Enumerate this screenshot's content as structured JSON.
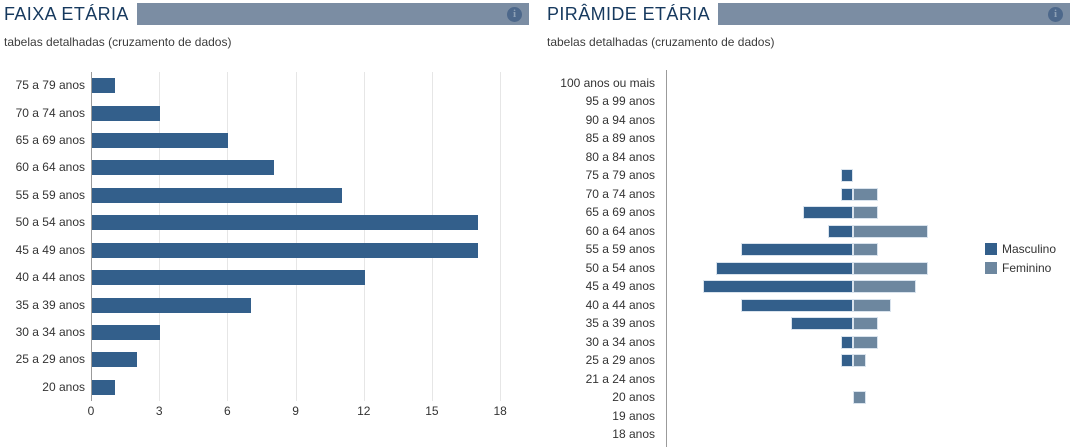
{
  "panels": [
    {
      "title": "FAIXA ETÁRIA",
      "subtitle": "tabelas detalhadas (cruzamento de dados)"
    },
    {
      "title": "PIRÂMIDE ETÁRIA",
      "subtitle": "tabelas detalhadas (cruzamento de dados)"
    }
  ],
  "icons": {
    "info": "i"
  },
  "colors": {
    "header_bar": "#7b8da3",
    "title_text": "#16395e",
    "male": "#335f8b",
    "female": "#6d879f",
    "axis_line": "#9b9b9b",
    "gridline": "#e6e6e6",
    "label_text": "#333333"
  },
  "chart_data": [
    {
      "type": "bar",
      "orientation": "horizontal",
      "title": "FAIXA ETÁRIA",
      "categories": [
        "75 a 79 anos",
        "70 a 74 anos",
        "65 a 69 anos",
        "60 a 64 anos",
        "55 a 59 anos",
        "50 a 54 anos",
        "45 a 49 anos",
        "40 a 44 anos",
        "35 a 39 anos",
        "30 a 34 anos",
        "25 a 29 anos",
        "20 anos"
      ],
      "values": [
        1,
        3,
        6,
        8,
        11,
        17,
        17,
        12,
        7,
        3,
        2,
        1
      ],
      "xticks": [
        0,
        3,
        6,
        9,
        12,
        15,
        18
      ],
      "xlim": [
        0,
        18
      ],
      "grid": true,
      "legend": false,
      "bar_color": "#335f8b"
    },
    {
      "type": "bar",
      "variant": "population-pyramid",
      "title": "PIRÂMIDE ETÁRIA",
      "categories": [
        "100 anos ou mais",
        "95 a 99 anos",
        "90 a 94 anos",
        "85 a 89 anos",
        "80 a 84 anos",
        "75 a 79 anos",
        "70 a 74 anos",
        "65 a 69 anos",
        "60 a 64 anos",
        "55 a 59 anos",
        "50 a 54 anos",
        "45 a 49 anos",
        "40 a 44 anos",
        "35 a 39 anos",
        "30 a 34 anos",
        "25 a 29 anos",
        "21 a 24 anos",
        "20 anos",
        "19 anos",
        "18 anos"
      ],
      "series": [
        {
          "name": "Masculino",
          "color": "#335f8b",
          "values": [
            0,
            0,
            0,
            0,
            0,
            1,
            1,
            4,
            2,
            9,
            11,
            12,
            9,
            5,
            1,
            1,
            0,
            0,
            0,
            0
          ]
        },
        {
          "name": "Feminino",
          "color": "#6d879f",
          "values": [
            0,
            0,
            0,
            0,
            0,
            0,
            2,
            2,
            6,
            2,
            6,
            5,
            3,
            2,
            2,
            1,
            0,
            1,
            0,
            0
          ]
        }
      ],
      "legend_position": "right",
      "grid": false
    }
  ]
}
